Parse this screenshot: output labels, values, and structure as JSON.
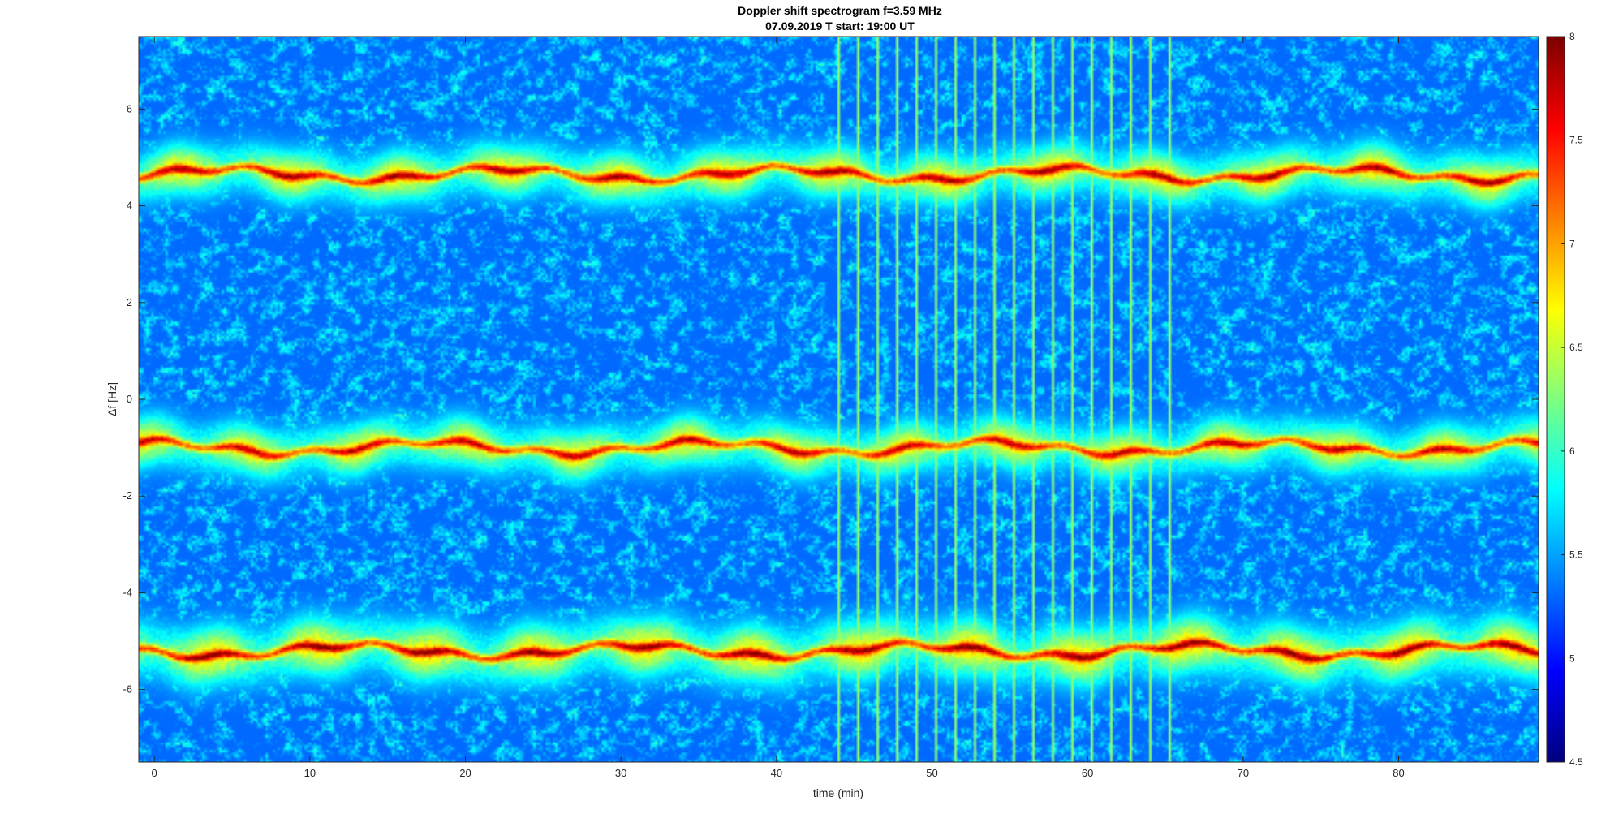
{
  "chart_data": {
    "type": "heatmap",
    "title": "Doppler shift spectrogram f=3.59 MHz",
    "subtitle": "07.09.2019   T start: 19:00 UT",
    "xlabel": "time (min)",
    "ylabel": "Δf [Hz]",
    "xlim": [
      -1,
      89
    ],
    "ylim": [
      -7.5,
      7.5
    ],
    "x_ticks": [
      0,
      10,
      20,
      30,
      40,
      50,
      60,
      70,
      80
    ],
    "y_ticks": [
      -6,
      -4,
      -2,
      0,
      2,
      4,
      6
    ],
    "colormap": "jet",
    "clim": [
      4.5,
      8
    ],
    "colorbar_ticks": [
      4.5,
      5,
      5.5,
      6,
      6.5,
      7,
      7.5,
      8
    ],
    "colorbar_location": "right",
    "background_level": 5.3,
    "traces": [
      {
        "center_hz": 4.65,
        "peak_level": 7.8,
        "width_hz": 0.35
      },
      {
        "center_hz": -1.0,
        "peak_level": 7.7,
        "width_hz": 0.35
      },
      {
        "center_hz": -5.2,
        "peak_level": 7.9,
        "width_hz": 0.4
      }
    ],
    "grid": false
  },
  "colors": {
    "axis": "#262626",
    "background": "#ffffff"
  }
}
